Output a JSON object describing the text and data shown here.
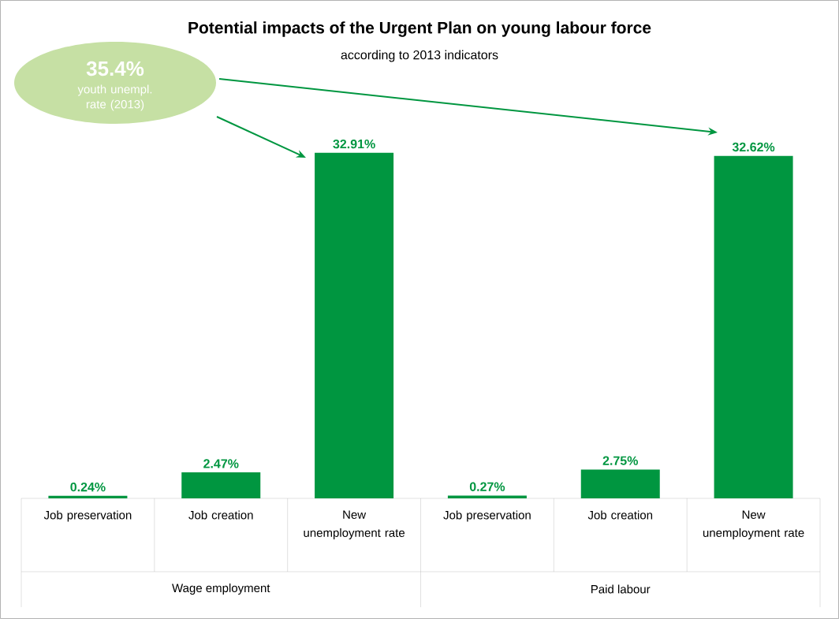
{
  "chart_data": {
    "type": "bar",
    "title": "Potential impacts of the Urgent Plan on young labour force",
    "subtitle": "according to 2013 indicators",
    "categories": [
      "Job preservation",
      "Job creation",
      "New unemployment rate",
      "Job preservation",
      "Job creation",
      "New unemployment rate"
    ],
    "values": [
      0.24,
      2.47,
      32.91,
      0.27,
      2.75,
      32.62
    ],
    "value_labels": [
      "0.24%",
      "2.47%",
      "32.91%",
      "0.27%",
      "2.75%",
      "32.62%"
    ],
    "color": "#009640",
    "annotations": [
      "Wage employment",
      "Paid labour",
      "35.4%",
      "youth unempl. rate (2013)"
    ]
  }
}
